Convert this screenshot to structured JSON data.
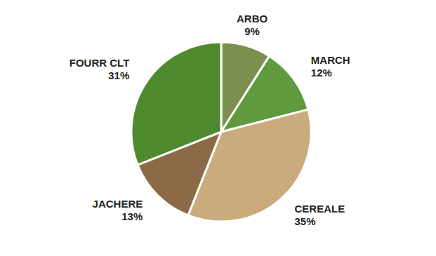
{
  "chart_data": {
    "type": "pie",
    "categories": [
      "ARBO",
      "MARCH",
      "CEREALE",
      "JACHERE",
      "FOURR CLT"
    ],
    "values": [
      9,
      12,
      35,
      13,
      31
    ],
    "value_labels": [
      "9%",
      "12%",
      "35%",
      "13%",
      "31%"
    ],
    "colors": [
      "#7d8f4e",
      "#5f9a3e",
      "#c9ab7c",
      "#8c6a48",
      "#4f8a2e"
    ],
    "data_labels": true
  }
}
